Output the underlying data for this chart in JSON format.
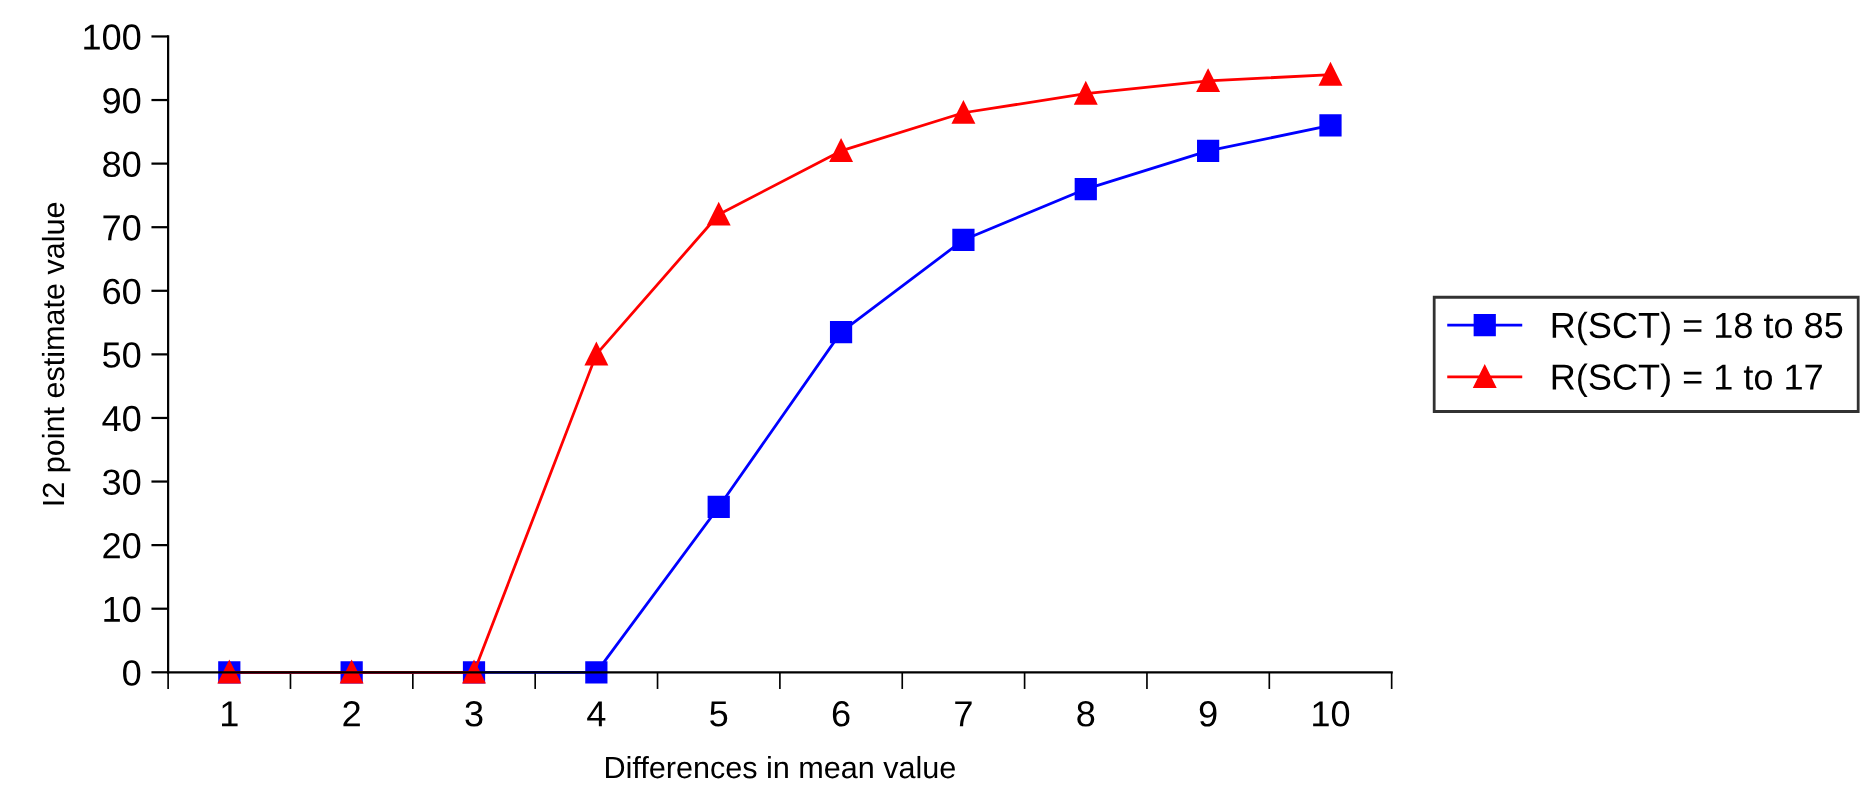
{
  "chart_data": {
    "type": "line",
    "xlabel": "Differences in mean value",
    "ylabel": "I2 point estimate value",
    "categories": [
      "1",
      "2",
      "3",
      "4",
      "5",
      "6",
      "7",
      "8",
      "9",
      "10"
    ],
    "series": [
      {
        "name": "R(SCT) = 18 to 85",
        "color": "#0000ff",
        "marker": "square",
        "values": [
          0,
          0,
          0,
          0,
          26,
          53.5,
          68,
          76,
          82,
          86
        ]
      },
      {
        "name": "R(SCT) = 1 to 17",
        "color": "#ff0000",
        "marker": "triangle",
        "values": [
          0,
          0,
          0,
          50,
          72,
          82,
          88,
          91,
          93,
          94
        ]
      }
    ],
    "ylim": [
      0,
      100
    ],
    "yticks": [
      0,
      10,
      20,
      30,
      40,
      50,
      60,
      70,
      80,
      90,
      100
    ],
    "grid": false,
    "legend": "right",
    "line_style": "solid"
  }
}
